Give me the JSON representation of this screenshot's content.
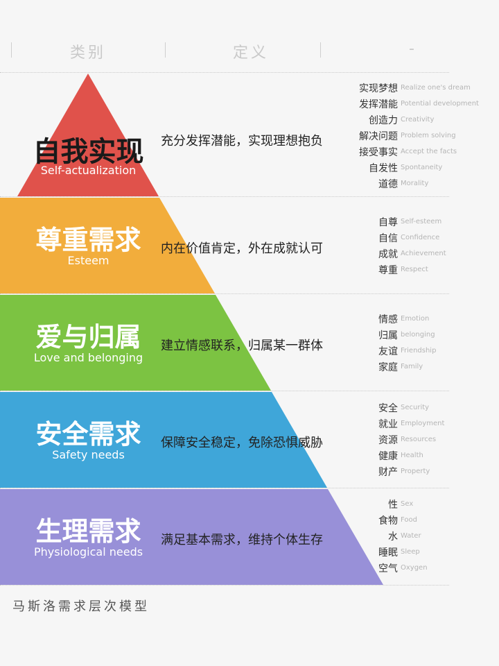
{
  "header": {
    "col1": "类别",
    "col2": "定义",
    "col3": "-"
  },
  "levels": [
    {
      "title": "自我实现",
      "subtitle": "Self-actualization",
      "color": "#e0524b",
      "definition": "充分发挥潜能，实现理想抱负",
      "keywords": [
        {
          "zh": "实现梦想",
          "en": "Realize one's dream"
        },
        {
          "zh": "发挥潜能",
          "en": "Potential development"
        },
        {
          "zh": "创造力",
          "en": "Creativity"
        },
        {
          "zh": "解决问题",
          "en": "Problem solving"
        },
        {
          "zh": "接受事实",
          "en": "Accept the facts"
        },
        {
          "zh": "自发性",
          "en": "Spontaneity"
        },
        {
          "zh": "道德",
          "en": "Morality"
        }
      ]
    },
    {
      "title": "尊重需求",
      "subtitle": "Esteem",
      "color": "#f2ad3c",
      "definition": "内在价值肯定，外在成就认可",
      "keywords": [
        {
          "zh": "自尊",
          "en": "Self-esteem"
        },
        {
          "zh": "自信",
          "en": "Confidence"
        },
        {
          "zh": "成就",
          "en": "Achievement"
        },
        {
          "zh": "尊重",
          "en": "Respect"
        }
      ]
    },
    {
      "title": "爱与归属",
      "subtitle": "Love and belonging",
      "color": "#7cc342",
      "definition": "建立情感联系，归属某一群体",
      "keywords": [
        {
          "zh": "情感",
          "en": "Emotion"
        },
        {
          "zh": "归属",
          "en": "belonging"
        },
        {
          "zh": "友谊",
          "en": "Friendship"
        },
        {
          "zh": "家庭",
          "en": "Family"
        }
      ]
    },
    {
      "title": "安全需求",
      "subtitle": "Safety needs",
      "color": "#3fa6d9",
      "definition": "保障安全稳定，免除恐惧威胁",
      "keywords": [
        {
          "zh": "安全",
          "en": "Security"
        },
        {
          "zh": "就业",
          "en": "Employment"
        },
        {
          "zh": "资源",
          "en": "Resources"
        },
        {
          "zh": "健康",
          "en": "Health"
        },
        {
          "zh": "财产",
          "en": "Property"
        }
      ]
    },
    {
      "title": "生理需求",
      "subtitle": "Physiological needs",
      "color": "#9890d8",
      "definition": "满足基本需求，维持个体生存",
      "keywords": [
        {
          "zh": "性",
          "en": "Sex"
        },
        {
          "zh": "食物",
          "en": "Food"
        },
        {
          "zh": "水",
          "en": "Water"
        },
        {
          "zh": "睡眠",
          "en": "Sleep"
        },
        {
          "zh": "空气",
          "en": "Oxygen"
        }
      ]
    }
  ],
  "footer": "马斯洛需求层次模型"
}
